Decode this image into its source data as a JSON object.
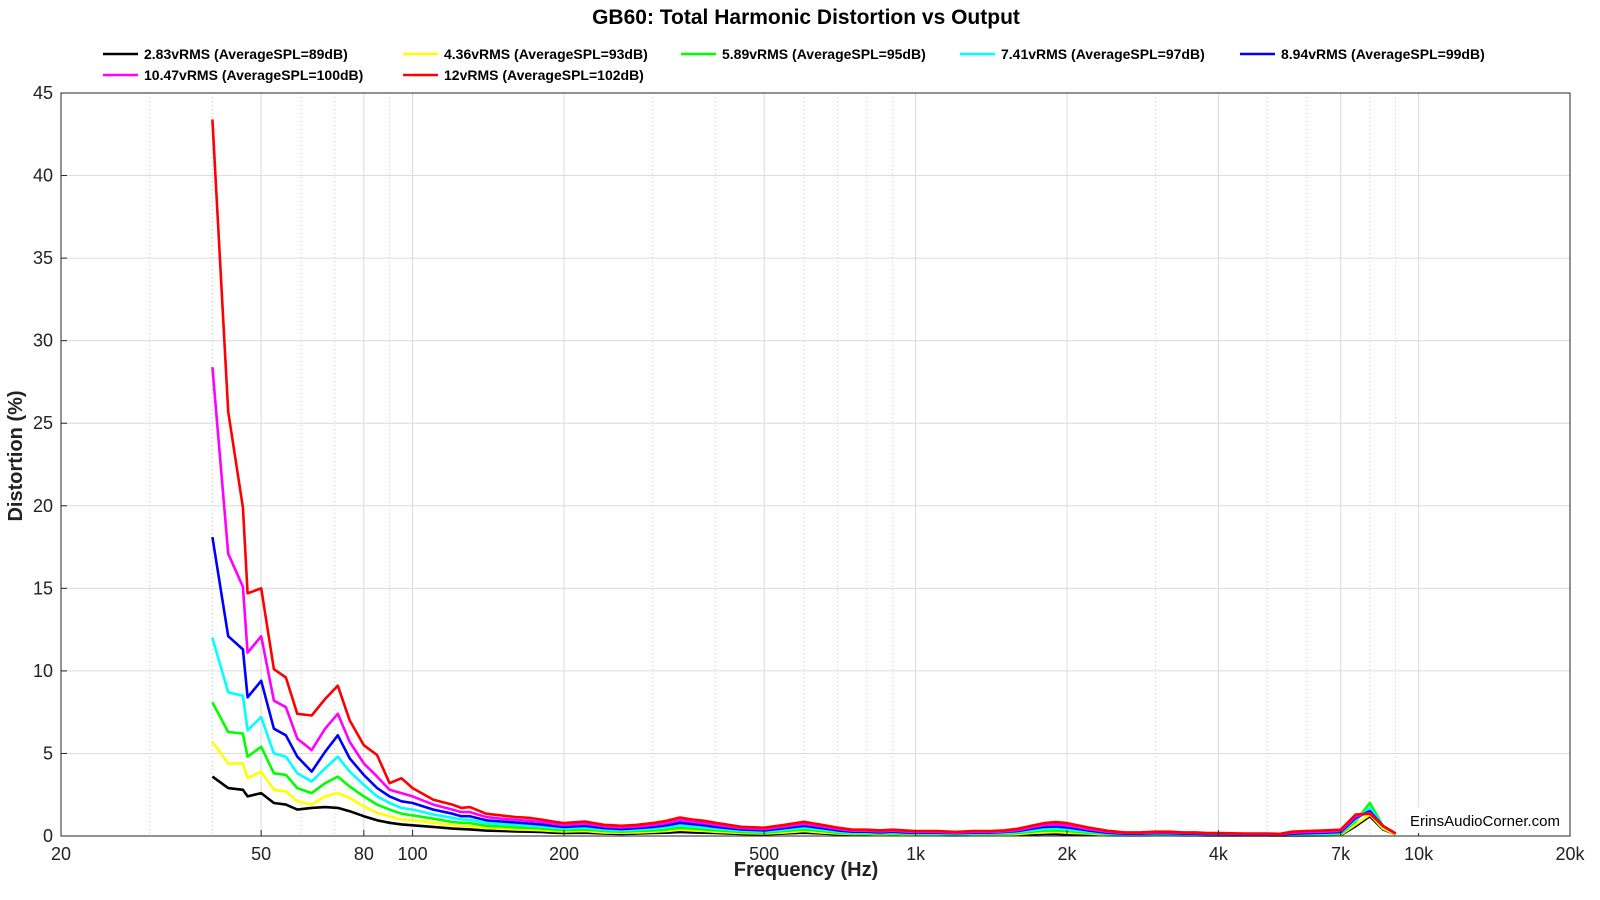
{
  "chart_data": {
    "type": "line",
    "title": "GB60: Total Harmonic Distortion vs Output",
    "xlabel": "Frequency (Hz)",
    "ylabel": "Distortion (%)",
    "xscale": "log",
    "xlim": [
      20,
      20000
    ],
    "ylim": [
      0,
      45
    ],
    "grid": true,
    "legend_position": "top",
    "watermark": "ErinsAudioCorner.com",
    "x_ticks": [
      {
        "value": 20,
        "label": "20"
      },
      {
        "value": 50,
        "label": "50"
      },
      {
        "value": 80,
        "label": "80"
      },
      {
        "value": 100,
        "label": "100"
      },
      {
        "value": 200,
        "label": "200"
      },
      {
        "value": 500,
        "label": "500"
      },
      {
        "value": 1000,
        "label": "1k"
      },
      {
        "value": 2000,
        "label": "2k"
      },
      {
        "value": 4000,
        "label": "4k"
      },
      {
        "value": 7000,
        "label": "7k"
      },
      {
        "value": 10000,
        "label": "10k"
      },
      {
        "value": 20000,
        "label": "20k"
      }
    ],
    "y_ticks": [
      {
        "value": 0,
        "label": "0"
      },
      {
        "value": 5,
        "label": "5"
      },
      {
        "value": 10,
        "label": "10"
      },
      {
        "value": 15,
        "label": "15"
      },
      {
        "value": 20,
        "label": "20"
      },
      {
        "value": 25,
        "label": "25"
      },
      {
        "value": 30,
        "label": "30"
      },
      {
        "value": 35,
        "label": "35"
      },
      {
        "value": 40,
        "label": "40"
      },
      {
        "value": 45,
        "label": "45"
      }
    ],
    "x": [
      40,
      43,
      46,
      47,
      50,
      53,
      56,
      59,
      63,
      67,
      71,
      75,
      80,
      85,
      90,
      95,
      100,
      110,
      120,
      125,
      130,
      140,
      150,
      160,
      170,
      180,
      190,
      200,
      220,
      240,
      260,
      280,
      300,
      320,
      340,
      360,
      380,
      400,
      450,
      500,
      550,
      600,
      650,
      700,
      750,
      800,
      850,
      900,
      950,
      1000,
      1100,
      1200,
      1300,
      1400,
      1500,
      1600,
      1700,
      1800,
      1900,
      2000,
      2200,
      2400,
      2600,
      2800,
      3000,
      3200,
      3400,
      3600,
      3800,
      4000,
      4500,
      5000,
      5300,
      5600,
      6000,
      6500,
      7000,
      7500,
      8000,
      8500,
      9000
    ],
    "series": [
      {
        "name": "2.83vRMS (AverageSPL=89dB)",
        "color": "#000000",
        "values": [
          3.6,
          2.9,
          2.8,
          2.4,
          2.6,
          2.0,
          1.9,
          1.6,
          1.7,
          1.75,
          1.7,
          1.5,
          1.2,
          0.95,
          0.8,
          0.7,
          0.65,
          0.55,
          0.45,
          0.42,
          0.4,
          0.33,
          0.3,
          0.28,
          0.26,
          0.24,
          0.2,
          0.18,
          0.2,
          0.15,
          0.12,
          0.15,
          0.18,
          0.2,
          0.25,
          0.22,
          0.2,
          0.18,
          0.12,
          0.1,
          0.15,
          0.2,
          0.15,
          0.1,
          0.08,
          0.08,
          0.06,
          0.08,
          0.06,
          0.05,
          0.05,
          0.04,
          0.05,
          0.05,
          0.06,
          0.08,
          0.1,
          0.12,
          0.12,
          0.1,
          0.08,
          0.05,
          0.04,
          0.04,
          0.05,
          0.05,
          0.04,
          0.04,
          0.03,
          0.03,
          0.03,
          0.03,
          0.02,
          0.03,
          0.03,
          0.04,
          0.05,
          0.6,
          1.2,
          0.4,
          0.1
        ]
      },
      {
        "name": "4.36vRMS (AverageSPL=93dB)",
        "color": "#ffff00",
        "values": [
          5.7,
          4.4,
          4.4,
          3.5,
          3.9,
          2.8,
          2.7,
          2.1,
          1.9,
          2.4,
          2.6,
          2.3,
          1.8,
          1.4,
          1.2,
          1.0,
          0.95,
          0.8,
          0.65,
          0.6,
          0.58,
          0.48,
          0.44,
          0.4,
          0.38,
          0.35,
          0.3,
          0.28,
          0.3,
          0.22,
          0.2,
          0.22,
          0.26,
          0.3,
          0.38,
          0.34,
          0.3,
          0.26,
          0.18,
          0.15,
          0.22,
          0.3,
          0.22,
          0.15,
          0.12,
          0.12,
          0.1,
          0.12,
          0.1,
          0.08,
          0.08,
          0.06,
          0.08,
          0.08,
          0.1,
          0.12,
          0.18,
          0.22,
          0.24,
          0.2,
          0.15,
          0.08,
          0.06,
          0.06,
          0.08,
          0.08,
          0.06,
          0.06,
          0.05,
          0.05,
          0.04,
          0.04,
          0.03,
          0.05,
          0.05,
          0.06,
          0.08,
          0.7,
          1.3,
          0.45,
          0.1
        ]
      },
      {
        "name": "5.89vRMS (AverageSPL=95dB)",
        "color": "#00ff00",
        "values": [
          8.1,
          6.3,
          6.2,
          4.8,
          5.4,
          3.8,
          3.7,
          2.9,
          2.6,
          3.2,
          3.6,
          3.0,
          2.4,
          1.9,
          1.6,
          1.35,
          1.25,
          1.05,
          0.85,
          0.8,
          0.78,
          0.62,
          0.58,
          0.52,
          0.5,
          0.46,
          0.4,
          0.36,
          0.4,
          0.3,
          0.26,
          0.3,
          0.34,
          0.4,
          0.5,
          0.45,
          0.4,
          0.35,
          0.24,
          0.2,
          0.3,
          0.4,
          0.3,
          0.2,
          0.16,
          0.16,
          0.14,
          0.16,
          0.14,
          0.12,
          0.12,
          0.1,
          0.12,
          0.12,
          0.14,
          0.18,
          0.26,
          0.32,
          0.34,
          0.3,
          0.2,
          0.12,
          0.08,
          0.08,
          0.1,
          0.1,
          0.08,
          0.08,
          0.07,
          0.07,
          0.06,
          0.06,
          0.05,
          0.07,
          0.08,
          0.1,
          0.12,
          0.9,
          2.0,
          0.6,
          0.15
        ]
      },
      {
        "name": "7.41vRMS (AverageSPL=97dB)",
        "color": "#00ffff",
        "values": [
          12.0,
          8.7,
          8.5,
          6.4,
          7.2,
          5.0,
          4.8,
          3.8,
          3.3,
          4.1,
          4.8,
          3.9,
          3.1,
          2.4,
          2.0,
          1.7,
          1.6,
          1.3,
          1.1,
          1.0,
          0.98,
          0.78,
          0.72,
          0.66,
          0.62,
          0.58,
          0.5,
          0.45,
          0.5,
          0.38,
          0.34,
          0.38,
          0.44,
          0.52,
          0.64,
          0.58,
          0.52,
          0.45,
          0.32,
          0.26,
          0.38,
          0.5,
          0.38,
          0.26,
          0.2,
          0.2,
          0.18,
          0.2,
          0.18,
          0.15,
          0.15,
          0.13,
          0.15,
          0.15,
          0.18,
          0.24,
          0.34,
          0.42,
          0.45,
          0.4,
          0.26,
          0.16,
          0.1,
          0.1,
          0.13,
          0.13,
          0.1,
          0.1,
          0.09,
          0.09,
          0.08,
          0.08,
          0.07,
          0.1,
          0.12,
          0.14,
          0.18,
          1.0,
          1.7,
          0.6,
          0.15
        ]
      },
      {
        "name": "8.94vRMS (AverageSPL=99dB)",
        "color": "#0000ff",
        "values": [
          18.1,
          12.1,
          11.3,
          8.4,
          9.4,
          6.5,
          6.1,
          4.8,
          3.9,
          5.1,
          6.1,
          4.7,
          3.7,
          2.9,
          2.4,
          2.1,
          2.0,
          1.6,
          1.35,
          1.2,
          1.2,
          0.95,
          0.88,
          0.82,
          0.76,
          0.7,
          0.62,
          0.55,
          0.62,
          0.48,
          0.42,
          0.48,
          0.55,
          0.65,
          0.8,
          0.72,
          0.65,
          0.56,
          0.4,
          0.34,
          0.48,
          0.62,
          0.48,
          0.34,
          0.26,
          0.26,
          0.22,
          0.26,
          0.22,
          0.2,
          0.2,
          0.17,
          0.2,
          0.2,
          0.24,
          0.3,
          0.44,
          0.55,
          0.58,
          0.52,
          0.34,
          0.2,
          0.14,
          0.14,
          0.17,
          0.17,
          0.14,
          0.14,
          0.12,
          0.12,
          0.1,
          0.1,
          0.09,
          0.14,
          0.17,
          0.2,
          0.24,
          1.1,
          1.5,
          0.6,
          0.15
        ]
      },
      {
        "name": "10.47vRMS (AverageSPL=100dB)",
        "color": "#ff00ff",
        "values": [
          28.4,
          17.1,
          15.1,
          11.1,
          12.1,
          8.2,
          7.8,
          5.9,
          5.2,
          6.5,
          7.4,
          5.7,
          4.4,
          3.6,
          2.8,
          2.6,
          2.4,
          1.9,
          1.6,
          1.45,
          1.45,
          1.15,
          1.05,
          0.98,
          0.92,
          0.85,
          0.75,
          0.66,
          0.75,
          0.58,
          0.52,
          0.58,
          0.66,
          0.78,
          0.96,
          0.86,
          0.78,
          0.68,
          0.48,
          0.42,
          0.58,
          0.74,
          0.58,
          0.42,
          0.32,
          0.32,
          0.28,
          0.32,
          0.28,
          0.24,
          0.24,
          0.2,
          0.24,
          0.24,
          0.28,
          0.36,
          0.52,
          0.66,
          0.7,
          0.64,
          0.42,
          0.26,
          0.18,
          0.18,
          0.21,
          0.21,
          0.18,
          0.18,
          0.15,
          0.15,
          0.12,
          0.12,
          0.11,
          0.2,
          0.24,
          0.26,
          0.3,
          1.2,
          1.4,
          0.6,
          0.15
        ]
      },
      {
        "name": "12vRMS (AverageSPL=102dB)",
        "color": "#ff0000",
        "values": [
          43.4,
          25.7,
          19.9,
          14.7,
          15.0,
          10.1,
          9.6,
          7.4,
          7.3,
          8.3,
          9.1,
          7.0,
          5.5,
          4.9,
          3.2,
          3.5,
          2.9,
          2.2,
          1.9,
          1.7,
          1.75,
          1.35,
          1.25,
          1.15,
          1.1,
          1.0,
          0.88,
          0.78,
          0.88,
          0.68,
          0.62,
          0.68,
          0.78,
          0.92,
          1.12,
          1.0,
          0.92,
          0.8,
          0.56,
          0.5,
          0.68,
          0.86,
          0.68,
          0.5,
          0.38,
          0.38,
          0.34,
          0.38,
          0.34,
          0.3,
          0.3,
          0.25,
          0.3,
          0.3,
          0.34,
          0.44,
          0.62,
          0.78,
          0.84,
          0.78,
          0.52,
          0.32,
          0.22,
          0.22,
          0.26,
          0.26,
          0.22,
          0.22,
          0.18,
          0.18,
          0.15,
          0.15,
          0.13,
          0.26,
          0.3,
          0.34,
          0.38,
          1.3,
          1.35,
          0.6,
          0.15
        ]
      }
    ]
  }
}
